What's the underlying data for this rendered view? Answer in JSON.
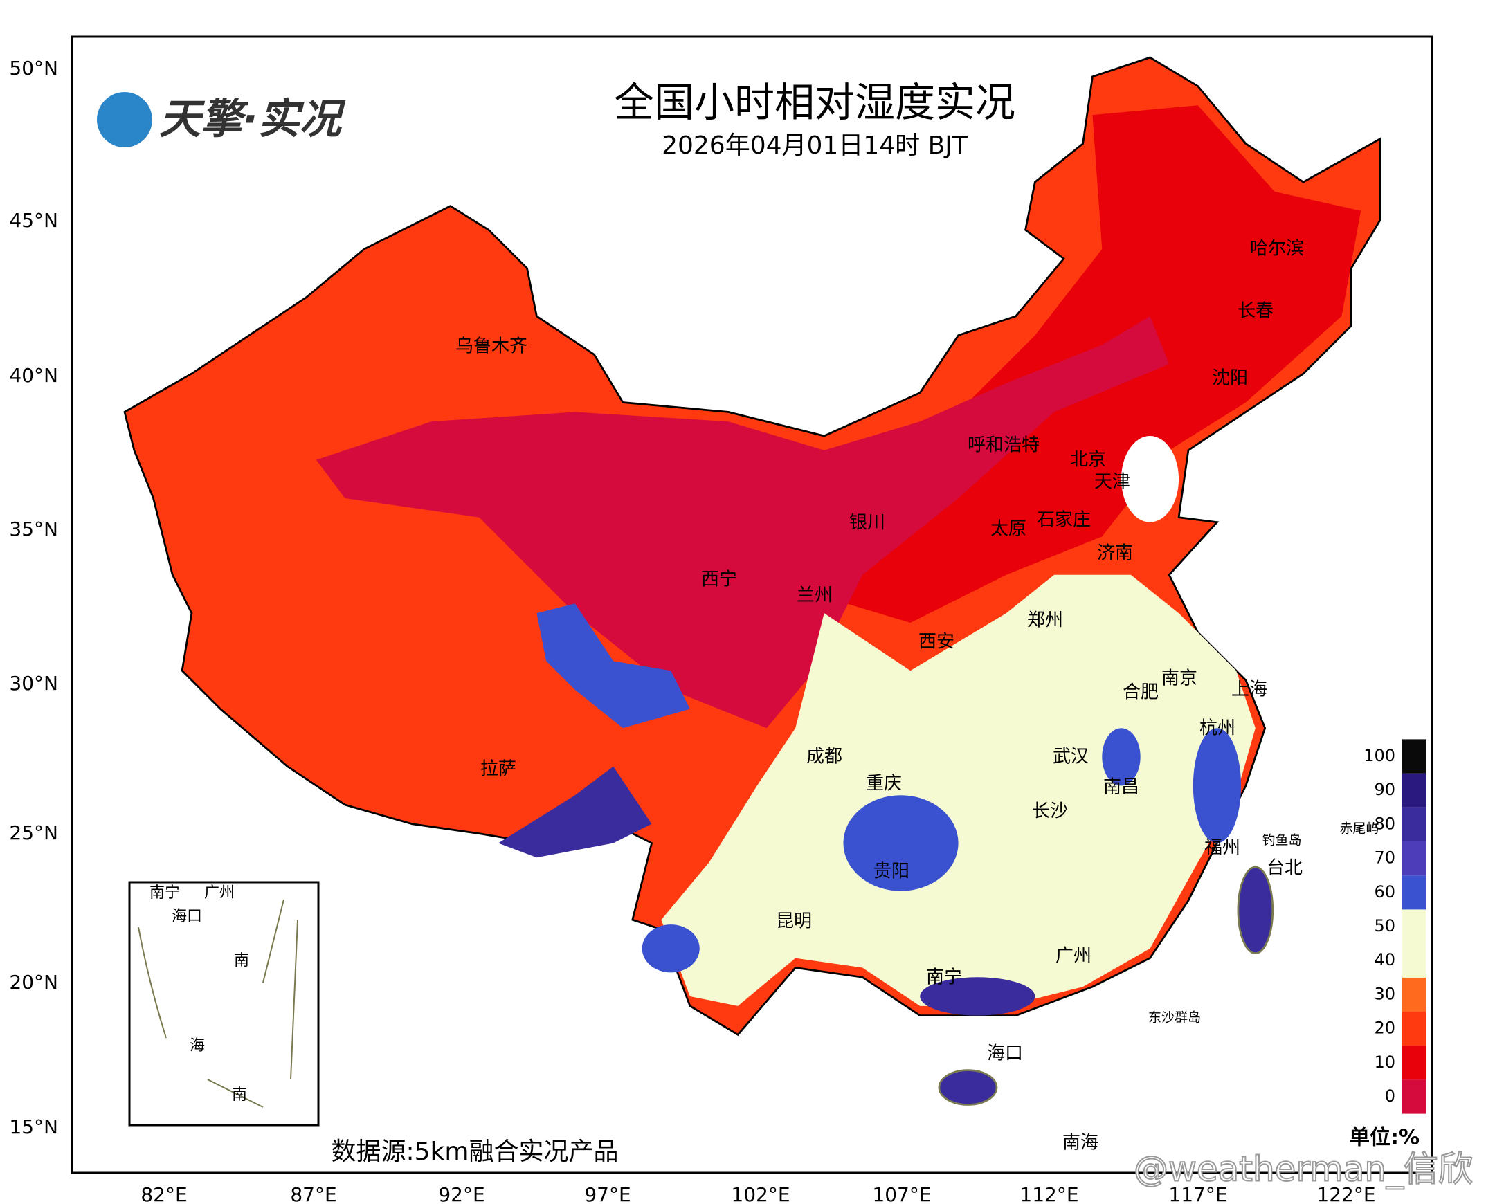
{
  "header": {
    "logo": "天擎·实况",
    "title": "全国小时相对湿度实况",
    "subtitle": "2026年04月01日14时 BJT"
  },
  "axes": {
    "lat_ticks": [
      "50°N",
      "45°N",
      "40°N",
      "35°N",
      "30°N",
      "25°N",
      "20°N",
      "15°N"
    ],
    "lon_ticks": [
      "82°E",
      "87°E",
      "92°E",
      "97°E",
      "102°E",
      "107°E",
      "112°E",
      "117°E",
      "122°E"
    ]
  },
  "cities": [
    "乌鲁木齐",
    "哈尔滨",
    "长春",
    "沈阳",
    "呼和浩特",
    "北京",
    "天津",
    "石家庄",
    "太原",
    "银川",
    "济南",
    "西宁",
    "兰州",
    "郑州",
    "西安",
    "南京",
    "合肥",
    "上海",
    "杭州",
    "武汉",
    "成都",
    "拉萨",
    "重庆",
    "南昌",
    "长沙",
    "福州",
    "台北",
    "贵阳",
    "昆明",
    "广州",
    "南宁",
    "海口",
    "南海"
  ],
  "small_labels": [
    "钓鱼岛",
    "赤尾屿",
    "东沙群岛"
  ],
  "inset": {
    "labels": [
      "南宁",
      "广州",
      "海口",
      "南",
      "海",
      "南"
    ]
  },
  "colorbar": {
    "ticks": [
      0,
      10,
      20,
      30,
      40,
      50,
      60,
      70,
      80,
      90,
      100
    ],
    "colors": [
      "#d40b3c",
      "#e8000b",
      "#ff3a10",
      "#ff6a1f",
      "#f5fad2",
      "#f5fad2",
      "#3a52d0",
      "#4d3db8",
      "#3b2c9e",
      "#2a1a80",
      "#0a0a0a"
    ],
    "unit": "单位:%"
  },
  "footer": {
    "source": "数据源:5km融合实况产品",
    "watermark": "@weatherman_信欣"
  }
}
